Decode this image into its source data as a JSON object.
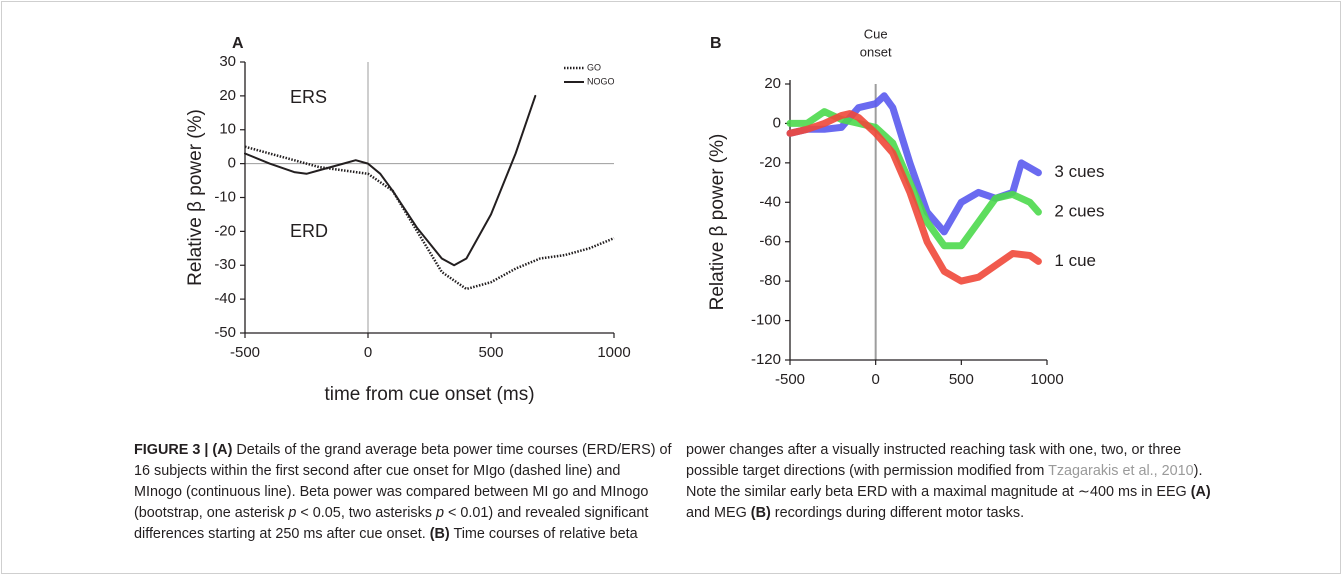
{
  "chart_data": [
    {
      "type": "line",
      "panel": "A",
      "y_label": "Relative β power (%)",
      "x_label": "time from cue onset (ms)",
      "xlim": [
        -500,
        1000
      ],
      "ylim": [
        -50,
        30
      ],
      "xticks": [
        -500,
        0,
        500,
        1000
      ],
      "yticks": [
        -50,
        -40,
        -30,
        -20,
        -10,
        0,
        10,
        20,
        30
      ],
      "annotations": [
        "ERS",
        "ERD"
      ],
      "legend": "upper-right",
      "series": [
        {
          "name": "GO",
          "color": "#231f20",
          "dash": "dotted",
          "width": 2.5,
          "x": [
            -500,
            -400,
            -300,
            -200,
            -100,
            0,
            100,
            200,
            300,
            400,
            500,
            600,
            700,
            800,
            900,
            1000
          ],
          "values": [
            5,
            3,
            1,
            -1,
            -2,
            -3,
            -8,
            -20,
            -32,
            -37,
            -35,
            -31,
            -28,
            -27,
            -25,
            -22
          ]
        },
        {
          "name": "NOGO",
          "color": "#231f20",
          "dash": "solid",
          "width": 2,
          "x": [
            -500,
            -400,
            -300,
            -250,
            -200,
            -100,
            -50,
            0,
            50,
            100,
            200,
            300,
            350,
            400,
            500,
            600,
            680
          ],
          "values": [
            3,
            0,
            -2.5,
            -3,
            -2,
            0,
            1,
            0,
            -3,
            -8,
            -19,
            -28,
            -30,
            -28,
            -15,
            3,
            20
          ]
        }
      ]
    },
    {
      "type": "line",
      "panel": "B",
      "y_label": "Relative β power (%)",
      "xlim": [
        -500,
        1000
      ],
      "ylim": [
        -120,
        20
      ],
      "xticks": [
        -500,
        0,
        500,
        1000
      ],
      "yticks": [
        -120,
        -100,
        -80,
        -60,
        -40,
        -20,
        0,
        20
      ],
      "annotations": [
        "Cue",
        "onset"
      ],
      "legend": "line-end",
      "series": [
        {
          "name": "3 cues",
          "color": "#5a5aee",
          "dash": "solid",
          "width": 7,
          "x": [
            -500,
            -400,
            -300,
            -200,
            -100,
            0,
            50,
            100,
            200,
            300,
            400,
            500,
            600,
            700,
            800,
            850,
            950
          ],
          "values": [
            -5,
            -3,
            -3,
            -2,
            8,
            10,
            14,
            8,
            -20,
            -45,
            -55,
            -40,
            -35,
            -38,
            -35,
            -20,
            -25
          ]
        },
        {
          "name": "2 cues",
          "color": "#4cd94c",
          "dash": "solid",
          "width": 7,
          "x": [
            -500,
            -400,
            -300,
            -200,
            -100,
            0,
            100,
            200,
            300,
            400,
            500,
            600,
            700,
            800,
            900,
            950
          ],
          "values": [
            0,
            0,
            6,
            2,
            0,
            -2,
            -10,
            -30,
            -50,
            -62,
            -62,
            -50,
            -38,
            -36,
            -40,
            -45
          ]
        },
        {
          "name": "1 cue",
          "color": "#f0483a",
          "dash": "solid",
          "width": 7,
          "x": [
            -500,
            -400,
            -300,
            -200,
            -150,
            -100,
            0,
            100,
            200,
            300,
            400,
            500,
            600,
            700,
            800,
            900,
            950
          ],
          "values": [
            -5,
            -3,
            0,
            4,
            5,
            3,
            -5,
            -15,
            -35,
            -60,
            -75,
            -80,
            -78,
            -72,
            -66,
            -67,
            -70
          ]
        }
      ]
    }
  ],
  "caption": [
    "FIGURE 3 | (A)",
    " Details of the grand average beta power time courses (ERD/ERS) of 16 subjects within the first second after cue onset for MIgo (dashed line) and MInogo (continuous line). Beta power was compared between MI go and MInogo (bootstrap, one asterisk ",
    "p",
    " < 0.05, two asterisks ",
    "p",
    " < 0.01) and revealed significant differences starting at 250 ms after cue onset. ",
    "(B)",
    " Time courses of relative beta power changes after a visually instructed reaching task with one, two, or three possible target directions (with permission modified from ",
    "Tzagarakis et al., 2010",
    "). Note the similar early beta ERD with a maximal magnitude at ∼400 ms in EEG ",
    "(A)",
    " and MEG ",
    "(B)",
    " recordings during different motor tasks."
  ]
}
